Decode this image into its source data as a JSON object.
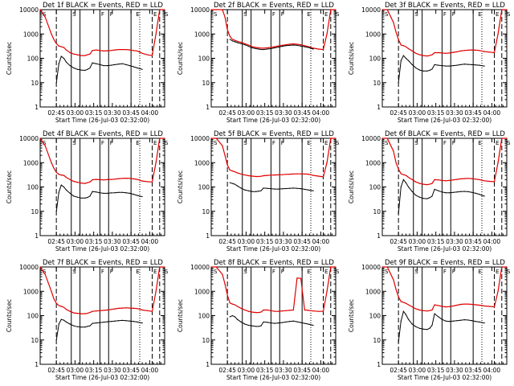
{
  "figure": {
    "panels": [
      {
        "title": "Det 1f BLACK = Events, RED = LLD"
      },
      {
        "title": "Det 2f BLACK = Events, RED = LLD"
      },
      {
        "title": "Det 3f BLACK = Events, RED = LLD"
      },
      {
        "title": "Det 4f BLACK = Events, RED = LLD"
      },
      {
        "title": "Det 5f BLACK = Events, RED = LLD"
      },
      {
        "title": "Det 6f BLACK = Events, RED = LLD"
      },
      {
        "title": "Det 7f BLACK = Events, RED = LLD"
      },
      {
        "title": "Det 8f BLACK = Events, RED = LLD"
      },
      {
        "title": "Det 9f BLACK = Events, RED = LLD"
      }
    ],
    "ylabel": "Counts/sec",
    "xlabel": "Start Time (26-Jul-03 02:32:00)",
    "xticks": [
      "02:45",
      "03:00",
      "03:15",
      "03:30",
      "03:45",
      "04:00"
    ],
    "yticks": [
      "1",
      "10",
      "100",
      "1000",
      "10000"
    ],
    "markers": [
      "S",
      "S",
      "F",
      "F",
      "E",
      "E",
      "S"
    ]
  },
  "chart_data": {
    "type": "line",
    "title": "Det 1f–9f BLACK = Events, RED = LLD",
    "xlabel": "Start Time (26-Jul-03 02:32:00)",
    "ylabel": "Counts/sec",
    "yscale": "log",
    "ylim": [
      1,
      10000
    ],
    "xlim_minutes_after_start": [
      0,
      100
    ],
    "x_minutes": [
      0,
      4,
      9,
      11,
      13,
      15,
      17,
      19,
      21,
      24,
      27,
      30,
      33,
      36,
      38,
      40,
      42,
      45,
      48,
      51,
      54,
      57,
      60,
      63,
      66,
      69,
      72,
      75,
      78,
      80,
      82,
      86,
      90,
      93,
      96,
      100
    ],
    "vertical_markers_minutes": [
      {
        "type": "dash-dot",
        "x": 13
      },
      {
        "type": "solid",
        "x": 25
      },
      {
        "type": "solid",
        "x": 32
      },
      {
        "type": "solid",
        "x": 48
      },
      {
        "type": "solid",
        "x": 55
      },
      {
        "type": "solid",
        "x": 73
      },
      {
        "type": "dotted",
        "x": 80
      },
      {
        "type": "dashed",
        "x": 90
      },
      {
        "type": "dashed",
        "x": 96
      }
    ],
    "panels": [
      {
        "detector": "1f",
        "series": [
          {
            "name": "LLD",
            "color": "#e00000",
            "values": [
              10000,
              5000,
              1000,
              600,
              400,
              320,
              300,
              280,
              220,
              170,
              150,
              140,
              130,
              130,
              140,
              150,
              210,
              220,
              210,
              200,
              205,
              210,
              220,
              230,
              230,
              230,
              220,
              210,
              200,
              180,
              160,
              140,
              130,
              1000,
              10000,
              10000
            ]
          },
          {
            "name": "Events",
            "color": "#000000",
            "values": [
              null,
              null,
              null,
              null,
              10,
              60,
              120,
              100,
              70,
              50,
              40,
              35,
              33,
              32,
              35,
              40,
              65,
              60,
              55,
              50,
              50,
              52,
              55,
              58,
              60,
              55,
              50,
              45,
              40,
              38,
              35,
              null,
              null,
              null,
              null,
              null
            ]
          }
        ]
      },
      {
        "detector": "2f",
        "series": [
          {
            "name": "LLD",
            "color": "#e00000",
            "values": [
              10000,
              10000,
              10000,
              5000,
              1500,
              800,
              600,
              550,
              500,
              450,
              400,
              350,
              300,
              280,
              270,
              260,
              260,
              270,
              280,
              300,
              320,
              340,
              360,
              380,
              390,
              380,
              360,
              330,
              300,
              280,
              260,
              240,
              230,
              1000,
              10000,
              10000
            ]
          },
          {
            "name": "Events",
            "color": "#000000",
            "values": [
              null,
              null,
              null,
              null,
              null,
              600,
              520,
              480,
              440,
              400,
              360,
              310,
              270,
              250,
              240,
              230,
              230,
              240,
              250,
              270,
              290,
              310,
              330,
              340,
              350,
              340,
              320,
              300,
              280,
              260,
              240,
              null,
              null,
              null,
              null,
              null
            ]
          }
        ]
      },
      {
        "detector": "3f",
        "series": [
          {
            "name": "LLD",
            "color": "#e00000",
            "values": [
              10000,
              10000,
              3000,
              1200,
              600,
              350,
              330,
              300,
              250,
              200,
              160,
              140,
              130,
              125,
              130,
              140,
              170,
              170,
              165,
              160,
              165,
              175,
              185,
              200,
              210,
              215,
              220,
              215,
              210,
              200,
              190,
              180,
              170,
              1000,
              10000,
              10000
            ]
          },
          {
            "name": "Events",
            "color": "#000000",
            "values": [
              null,
              null,
              null,
              null,
              10,
              80,
              130,
              100,
              80,
              55,
              40,
              33,
              30,
              30,
              32,
              36,
              55,
              52,
              50,
              48,
              48,
              50,
              52,
              55,
              58,
              56,
              55,
              53,
              52,
              50,
              48,
              null,
              null,
              null,
              null,
              null
            ]
          }
        ]
      },
      {
        "detector": "4f",
        "series": [
          {
            "name": "LLD",
            "color": "#e00000",
            "values": [
              10000,
              5000,
              1000,
              600,
              400,
              330,
              310,
              300,
              250,
              200,
              170,
              155,
              145,
              140,
              150,
              160,
              200,
              205,
              200,
              195,
              200,
              205,
              210,
              220,
              225,
              230,
              225,
              215,
              205,
              190,
              175,
              165,
              160,
              1000,
              10000,
              10000
            ]
          },
          {
            "name": "Events",
            "color": "#000000",
            "values": [
              null,
              null,
              null,
              null,
              10,
              60,
              120,
              100,
              75,
              55,
              42,
              38,
              35,
              35,
              37,
              42,
              65,
              62,
              58,
              55,
              55,
              57,
              58,
              60,
              60,
              58,
              55,
              50,
              45,
              42,
              40,
              null,
              null,
              null,
              null,
              null
            ]
          }
        ]
      },
      {
        "detector": "5f",
        "series": [
          {
            "name": "LLD",
            "color": "#e00000",
            "values": [
              10000,
              10000,
              5000,
              2000,
              800,
              500,
              450,
              420,
              380,
              340,
              310,
              290,
              280,
              270,
              270,
              275,
              290,
              300,
              305,
              310,
              315,
              320,
              330,
              335,
              340,
              345,
              345,
              340,
              335,
              320,
              300,
              280,
              260,
              1000,
              10000,
              10000
            ]
          },
          {
            "name": "Events",
            "color": "#000000",
            "values": [
              null,
              null,
              null,
              null,
              null,
              150,
              140,
              130,
              110,
              90,
              75,
              70,
              65,
              65,
              67,
              70,
              90,
              88,
              85,
              82,
              82,
              84,
              86,
              88,
              90,
              88,
              85,
              80,
              75,
              72,
              70,
              null,
              null,
              null,
              null,
              null
            ]
          }
        ]
      },
      {
        "detector": "6f",
        "series": [
          {
            "name": "LLD",
            "color": "#e00000",
            "values": [
              10000,
              10000,
              3000,
              1000,
              550,
              350,
              320,
              300,
              250,
              200,
              160,
              140,
              130,
              125,
              130,
              140,
              200,
              195,
              185,
              180,
              185,
              195,
              205,
              215,
              220,
              225,
              220,
              210,
              200,
              190,
              180,
              170,
              165,
              1000,
              10000,
              10000
            ]
          },
          {
            "name": "Events",
            "color": "#000000",
            "values": [
              null,
              null,
              null,
              null,
              8,
              100,
              200,
              150,
              100,
              65,
              45,
              38,
              34,
              33,
              36,
              42,
              80,
              70,
              62,
              58,
              58,
              60,
              62,
              65,
              66,
              64,
              60,
              55,
              50,
              45,
              42,
              null,
              null,
              null,
              null,
              null
            ]
          }
        ]
      },
      {
        "detector": "7f",
        "series": [
          {
            "name": "LLD",
            "color": "#e00000",
            "values": [
              10000,
              5000,
              1000,
              500,
              320,
              260,
              240,
              220,
              180,
              150,
              130,
              125,
              120,
              120,
              125,
              135,
              150,
              155,
              160,
              165,
              170,
              180,
              190,
              200,
              205,
              210,
              205,
              200,
              195,
              185,
              170,
              160,
              150,
              1000,
              10000,
              10000
            ]
          },
          {
            "name": "Events",
            "color": "#000000",
            "values": [
              null,
              null,
              null,
              null,
              10,
              45,
              70,
              65,
              55,
              45,
              38,
              35,
              34,
              34,
              36,
              38,
              48,
              50,
              52,
              54,
              56,
              58,
              60,
              62,
              64,
              62,
              60,
              58,
              55,
              52,
              50,
              null,
              null,
              null,
              null,
              null
            ]
          }
        ]
      },
      {
        "detector": "8f",
        "series": [
          {
            "name": "LLD",
            "color": "#e00000",
            "values": [
              10000,
              10000,
              5000,
              2000,
              700,
              330,
              300,
              280,
              240,
              200,
              170,
              150,
              140,
              135,
              135,
              140,
              170,
              170,
              160,
              150,
              150,
              155,
              160,
              165,
              170,
              3500,
              3400,
              170,
              165,
              160,
              155,
              150,
              150,
              1000,
              10000,
              10000
            ]
          },
          {
            "name": "Events",
            "color": "#000000",
            "values": [
              null,
              null,
              null,
              null,
              null,
              90,
              100,
              90,
              70,
              55,
              45,
              40,
              38,
              36,
              36,
              38,
              55,
              53,
              50,
              48,
              50,
              52,
              55,
              58,
              60,
              56,
              52,
              48,
              45,
              42,
              40,
              null,
              null,
              null,
              null,
              null
            ]
          }
        ]
      },
      {
        "detector": "9f",
        "series": [
          {
            "name": "LLD",
            "color": "#e00000",
            "values": [
              10000,
              10000,
              3000,
              1200,
              600,
              380,
              350,
              320,
              280,
              230,
              190,
              170,
              160,
              155,
              160,
              170,
              280,
              260,
              240,
              230,
              235,
              250,
              270,
              290,
              300,
              300,
              290,
              280,
              270,
              260,
              250,
              240,
              230,
              1000,
              10000,
              10000
            ]
          },
          {
            "name": "Events",
            "color": "#000000",
            "values": [
              null,
              null,
              null,
              null,
              8,
              60,
              150,
              110,
              70,
              45,
              35,
              30,
              28,
              27,
              30,
              40,
              120,
              90,
              70,
              60,
              58,
              60,
              62,
              65,
              68,
              66,
              62,
              58,
              55,
              52,
              50,
              null,
              null,
              null,
              null,
              null
            ]
          }
        ]
      }
    ]
  }
}
